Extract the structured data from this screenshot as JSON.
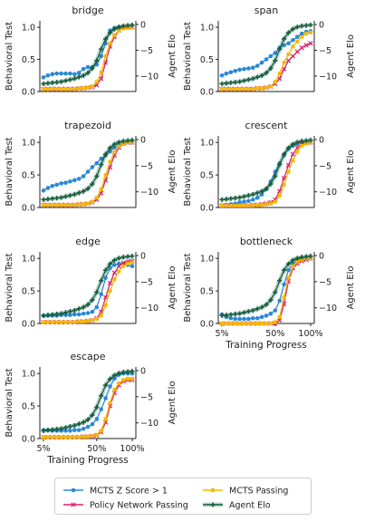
{
  "chart_data": [
    {
      "type": "line",
      "title": "bridge",
      "ylabel": "Behavioral Test",
      "y2label": "Agent Elo",
      "ylim": [
        0,
        1.1
      ],
      "y2lim": [
        -13,
        0.7
      ],
      "yticks": [
        "0.0",
        "0.5",
        "1.0"
      ],
      "y2ticks": [
        "0",
        "−5",
        "−10"
      ],
      "series": [
        {
          "name": "MCTS Z Score > 1",
          "values": [
            0.22,
            0.25,
            0.27,
            0.28,
            0.28,
            0.28,
            0.28,
            0.27,
            0.29,
            0.35,
            0.38,
            0.38,
            0.42,
            0.55,
            0.75,
            0.95,
            0.99,
            1.0,
            1.0,
            1.0,
            1.0
          ]
        },
        {
          "name": "Policy Network Passing",
          "values": [
            0.04,
            0.04,
            0.04,
            0.04,
            0.04,
            0.04,
            0.04,
            0.04,
            0.05,
            0.05,
            0.06,
            0.07,
            0.1,
            0.2,
            0.45,
            0.7,
            0.85,
            0.95,
            1.0,
            1.0,
            1.0
          ]
        },
        {
          "name": "MCTS Passing",
          "values": [
            0.04,
            0.04,
            0.04,
            0.04,
            0.04,
            0.04,
            0.04,
            0.04,
            0.05,
            0.05,
            0.06,
            0.08,
            0.15,
            0.3,
            0.55,
            0.75,
            0.88,
            0.95,
            0.98,
            1.0,
            1.0
          ]
        },
        {
          "name": "Agent Elo",
          "values": [
            -11.5,
            -11.4,
            -11.3,
            -11.2,
            -11.1,
            -10.9,
            -10.7,
            -10.5,
            -10.2,
            -9.9,
            -9.4,
            -8.5,
            -7.0,
            -4.8,
            -2.8,
            -1.6,
            -0.9,
            -0.5,
            -0.3,
            -0.2,
            -0.1
          ]
        }
      ]
    },
    {
      "type": "line",
      "title": "span",
      "ylabel": "Behavioral Test",
      "y2label": "Agent Elo",
      "ylim": [
        0,
        1.1
      ],
      "y2lim": [
        -13,
        0.7
      ],
      "yticks": [
        "0.0",
        "0.5",
        "1.0"
      ],
      "y2ticks": [
        "0",
        "−5",
        "−10"
      ],
      "series": [
        {
          "name": "MCTS Z Score > 1",
          "values": [
            0.25,
            0.28,
            0.3,
            0.32,
            0.34,
            0.35,
            0.36,
            0.37,
            0.4,
            0.45,
            0.5,
            0.55,
            0.6,
            0.68,
            0.72,
            0.75,
            0.8,
            0.85,
            0.9,
            0.93,
            0.94
          ]
        },
        {
          "name": "Policy Network Passing",
          "values": [
            0.04,
            0.04,
            0.04,
            0.04,
            0.04,
            0.04,
            0.04,
            0.04,
            0.05,
            0.05,
            0.06,
            0.08,
            0.12,
            0.2,
            0.35,
            0.48,
            0.55,
            0.62,
            0.68,
            0.72,
            0.75
          ]
        },
        {
          "name": "MCTS Passing",
          "values": [
            0.04,
            0.04,
            0.04,
            0.04,
            0.04,
            0.04,
            0.04,
            0.04,
            0.05,
            0.05,
            0.06,
            0.08,
            0.15,
            0.28,
            0.45,
            0.58,
            0.7,
            0.78,
            0.85,
            0.9,
            0.92
          ]
        },
        {
          "name": "Agent Elo",
          "values": [
            -11.5,
            -11.4,
            -11.3,
            -11.2,
            -11.1,
            -10.9,
            -10.7,
            -10.5,
            -10.2,
            -9.9,
            -9.4,
            -8.5,
            -7.0,
            -4.8,
            -2.8,
            -1.6,
            -0.9,
            -0.5,
            -0.3,
            -0.2,
            -0.1
          ]
        }
      ]
    },
    {
      "type": "line",
      "title": "trapezoid",
      "ylabel": "Behavioral Test",
      "y2label": "Agent Elo",
      "ylim": [
        0,
        1.1
      ],
      "y2lim": [
        -13,
        0.7
      ],
      "yticks": [
        "0.0",
        "0.5",
        "1.0"
      ],
      "y2ticks": [
        "0",
        "−5",
        "−10"
      ],
      "series": [
        {
          "name": "MCTS Z Score > 1",
          "values": [
            0.26,
            0.3,
            0.33,
            0.35,
            0.37,
            0.38,
            0.4,
            0.42,
            0.44,
            0.48,
            0.55,
            0.62,
            0.68,
            0.75,
            0.8,
            0.86,
            0.92,
            0.96,
            0.98,
            1.0,
            1.0
          ]
        },
        {
          "name": "Policy Network Passing",
          "values": [
            0.04,
            0.04,
            0.04,
            0.04,
            0.04,
            0.04,
            0.04,
            0.04,
            0.05,
            0.05,
            0.06,
            0.08,
            0.12,
            0.22,
            0.42,
            0.62,
            0.8,
            0.92,
            0.98,
            1.0,
            1.0
          ]
        },
        {
          "name": "MCTS Passing",
          "values": [
            0.04,
            0.04,
            0.04,
            0.04,
            0.04,
            0.04,
            0.04,
            0.04,
            0.05,
            0.05,
            0.06,
            0.09,
            0.15,
            0.28,
            0.5,
            0.7,
            0.85,
            0.94,
            0.98,
            1.0,
            1.0
          ]
        },
        {
          "name": "Agent Elo",
          "values": [
            -11.5,
            -11.4,
            -11.3,
            -11.2,
            -11.1,
            -10.9,
            -10.7,
            -10.5,
            -10.2,
            -9.9,
            -9.4,
            -8.5,
            -7.0,
            -4.8,
            -2.8,
            -1.6,
            -0.9,
            -0.5,
            -0.3,
            -0.2,
            -0.1
          ]
        }
      ]
    },
    {
      "type": "line",
      "title": "crescent",
      "ylabel": "Behavioral Test",
      "y2label": "Agent Elo",
      "ylim": [
        0,
        1.1
      ],
      "y2lim": [
        -13,
        0.7
      ],
      "yticks": [
        "0.0",
        "0.5",
        "1.0"
      ],
      "y2ticks": [
        "0",
        "−5",
        "−10"
      ],
      "series": [
        {
          "name": "MCTS Z Score > 1",
          "values": [
            0.03,
            0.04,
            0.05,
            0.06,
            0.08,
            0.09,
            0.1,
            0.12,
            0.15,
            0.2,
            0.28,
            0.4,
            0.55,
            0.68,
            0.8,
            0.9,
            0.95,
            0.98,
            1.0,
            1.0,
            1.0
          ]
        },
        {
          "name": "Policy Network Passing",
          "values": [
            0.03,
            0.03,
            0.03,
            0.03,
            0.03,
            0.03,
            0.03,
            0.04,
            0.04,
            0.05,
            0.06,
            0.08,
            0.12,
            0.25,
            0.45,
            0.65,
            0.82,
            0.92,
            0.98,
            1.0,
            1.0
          ]
        },
        {
          "name": "MCTS Passing",
          "values": [
            0.03,
            0.03,
            0.03,
            0.03,
            0.03,
            0.03,
            0.03,
            0.03,
            0.04,
            0.04,
            0.05,
            0.06,
            0.09,
            0.18,
            0.35,
            0.55,
            0.72,
            0.86,
            0.95,
            0.98,
            1.0
          ]
        },
        {
          "name": "Agent Elo",
          "values": [
            -11.5,
            -11.4,
            -11.3,
            -11.2,
            -11.1,
            -10.9,
            -10.7,
            -10.5,
            -10.2,
            -9.9,
            -9.4,
            -8.5,
            -7.0,
            -4.8,
            -2.8,
            -1.6,
            -0.9,
            -0.5,
            -0.3,
            -0.2,
            -0.1
          ]
        }
      ]
    },
    {
      "type": "line",
      "title": "edge",
      "ylabel": "Behavioral Test",
      "y2label": "Agent Elo",
      "ylim": [
        0,
        1.1
      ],
      "y2lim": [
        -13,
        0.7
      ],
      "yticks": [
        "0.0",
        "0.5",
        "1.0"
      ],
      "y2ticks": [
        "0",
        "−5",
        "−10"
      ],
      "series": [
        {
          "name": "MCTS Z Score > 1",
          "values": [
            0.12,
            0.12,
            0.12,
            0.12,
            0.13,
            0.13,
            0.13,
            0.14,
            0.14,
            0.15,
            0.16,
            0.18,
            0.25,
            0.45,
            0.7,
            0.85,
            0.9,
            0.92,
            0.92,
            0.9,
            0.88
          ]
        },
        {
          "name": "Policy Network Passing",
          "values": [
            0.02,
            0.02,
            0.02,
            0.02,
            0.02,
            0.02,
            0.02,
            0.02,
            0.03,
            0.03,
            0.04,
            0.05,
            0.08,
            0.18,
            0.4,
            0.62,
            0.78,
            0.88,
            0.93,
            0.95,
            0.96
          ]
        },
        {
          "name": "MCTS Passing",
          "values": [
            0.02,
            0.02,
            0.02,
            0.02,
            0.02,
            0.02,
            0.02,
            0.02,
            0.03,
            0.03,
            0.04,
            0.05,
            0.07,
            0.12,
            0.28,
            0.5,
            0.68,
            0.8,
            0.88,
            0.92,
            0.94
          ]
        },
        {
          "name": "Agent Elo",
          "values": [
            -11.5,
            -11.4,
            -11.3,
            -11.2,
            -11.1,
            -10.9,
            -10.7,
            -10.5,
            -10.2,
            -9.9,
            -9.4,
            -8.5,
            -7.0,
            -4.8,
            -2.8,
            -1.6,
            -0.9,
            -0.5,
            -0.3,
            -0.2,
            -0.1
          ]
        }
      ]
    },
    {
      "type": "line",
      "title": "bottleneck",
      "ylabel": "Behavioral Test",
      "y2label": "Agent Elo",
      "ylim": [
        0,
        1.1
      ],
      "y2lim": [
        -13,
        0.7
      ],
      "xlabel": "Training Progress",
      "xticks": [
        "5%",
        "50%",
        "100%"
      ],
      "yticks": [
        "0.0",
        "0.5",
        "1.0"
      ],
      "y2ticks": [
        "0",
        "−5",
        "−10"
      ],
      "series": [
        {
          "name": "MCTS Z Score > 1",
          "values": [
            0.14,
            0.1,
            0.08,
            0.07,
            0.07,
            0.07,
            0.07,
            0.08,
            0.08,
            0.1,
            0.12,
            0.15,
            0.2,
            0.35,
            0.6,
            0.82,
            0.92,
            0.97,
            1.0,
            1.0,
            1.0
          ]
        },
        {
          "name": "Policy Network Passing",
          "values": [
            0.0,
            0.0,
            0.0,
            0.0,
            0.0,
            0.0,
            0.0,
            0.0,
            0.0,
            0.0,
            0.0,
            0.0,
            0.0,
            0.05,
            0.3,
            0.65,
            0.85,
            0.92,
            0.96,
            0.98,
            1.0
          ]
        },
        {
          "name": "MCTS Passing",
          "values": [
            0.0,
            0.0,
            0.0,
            0.0,
            0.0,
            0.0,
            0.0,
            0.0,
            0.0,
            0.0,
            0.0,
            0.0,
            0.02,
            0.1,
            0.4,
            0.7,
            0.88,
            0.95,
            0.98,
            1.0,
            1.0
          ]
        },
        {
          "name": "Agent Elo",
          "values": [
            -11.5,
            -11.4,
            -11.3,
            -11.2,
            -11.1,
            -10.9,
            -10.7,
            -10.5,
            -10.2,
            -9.9,
            -9.4,
            -8.5,
            -7.0,
            -4.8,
            -2.8,
            -1.6,
            -0.9,
            -0.5,
            -0.3,
            -0.2,
            -0.1
          ]
        }
      ]
    },
    {
      "type": "line",
      "title": "escape",
      "ylabel": "Behavioral Test",
      "y2label": "Agent Elo",
      "ylim": [
        0,
        1.1
      ],
      "y2lim": [
        -13,
        0.7
      ],
      "xlabel": "Training Progress",
      "xticks": [
        "5%",
        "50%",
        "100%"
      ],
      "yticks": [
        "0.0",
        "0.5",
        "1.0"
      ],
      "y2ticks": [
        "0",
        "−5",
        "−10"
      ],
      "series": [
        {
          "name": "MCTS Z Score > 1",
          "values": [
            0.13,
            0.13,
            0.12,
            0.12,
            0.12,
            0.12,
            0.12,
            0.13,
            0.13,
            0.15,
            0.18,
            0.22,
            0.3,
            0.45,
            0.62,
            0.8,
            0.92,
            0.98,
            1.0,
            1.0,
            1.0
          ]
        },
        {
          "name": "Policy Network Passing",
          "values": [
            0.02,
            0.02,
            0.02,
            0.02,
            0.02,
            0.02,
            0.02,
            0.02,
            0.02,
            0.03,
            0.03,
            0.04,
            0.05,
            0.1,
            0.25,
            0.5,
            0.7,
            0.82,
            0.88,
            0.9,
            0.9
          ]
        },
        {
          "name": "MCTS Passing",
          "values": [
            0.02,
            0.02,
            0.02,
            0.02,
            0.02,
            0.02,
            0.02,
            0.02,
            0.02,
            0.03,
            0.03,
            0.04,
            0.06,
            0.12,
            0.3,
            0.55,
            0.75,
            0.85,
            0.9,
            0.92,
            0.92
          ]
        },
        {
          "name": "Agent Elo",
          "values": [
            -11.5,
            -11.4,
            -11.3,
            -11.2,
            -11.1,
            -10.9,
            -10.7,
            -10.5,
            -10.2,
            -9.9,
            -9.4,
            -8.5,
            -7.0,
            -4.8,
            -2.8,
            -1.6,
            -0.9,
            -0.5,
            -0.3,
            -0.2,
            -0.1
          ]
        }
      ]
    }
  ],
  "legend": {
    "placement": "bottom",
    "entries": [
      {
        "label": "MCTS Z Score > 1",
        "color": "#2b88d8",
        "marker": "circle"
      },
      {
        "label": "MCTS Passing",
        "color": "#f5b800",
        "marker": "square"
      },
      {
        "label": "Policy Network Passing",
        "color": "#d6246e",
        "marker": "x"
      },
      {
        "label": "Agent Elo",
        "color": "#155e3f",
        "marker": "plus"
      }
    ]
  },
  "colors": {
    "mcts_z": "#2b88d8",
    "policy": "#d6246e",
    "mcts_pass": "#f5b800",
    "elo": "#155e3f"
  }
}
